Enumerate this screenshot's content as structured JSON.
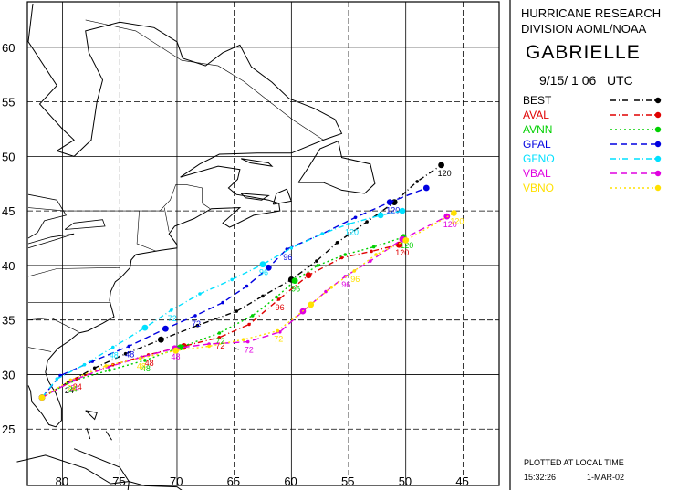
{
  "header": {
    "org_line1": "HURRICANE RESEARCH",
    "org_line2": "DIVISION AOML/NOAA",
    "storm_name": "GABRIELLE",
    "datetime": "9/15/ 1 06   UTC"
  },
  "footer": {
    "plot_note": "PLOTTED AT LOCAL TIME",
    "time": "15:32:26",
    "date": "1-MAR-02"
  },
  "axes": {
    "lon_ticks": [
      "80",
      "75",
      "70",
      "65",
      "60",
      "55",
      "50",
      "45"
    ],
    "lat_ticks": [
      "60",
      "55",
      "50",
      "45",
      "40",
      "35",
      "30",
      "25"
    ],
    "lon_range": [
      -83,
      -42
    ],
    "lat_range": [
      20,
      64
    ]
  },
  "colors": {
    "grid": "#000000",
    "coast": "#000000",
    "background": "#ffffff"
  },
  "legend": [
    {
      "name": "BEST",
      "color": "#000000",
      "style": "dashdot"
    },
    {
      "name": "AVAL",
      "color": "#e00000",
      "style": "dashdot"
    },
    {
      "name": "AVNN",
      "color": "#00d000",
      "style": "dotted"
    },
    {
      "name": "GFAL",
      "color": "#0000e0",
      "style": "dashed"
    },
    {
      "name": "GFNO",
      "color": "#00e0ff",
      "style": "dashdot"
    },
    {
      "name": "VBAL",
      "color": "#e000e0",
      "style": "dashed"
    },
    {
      "name": "VBNO",
      "color": "#ffe000",
      "style": "dotted"
    }
  ],
  "tracks": [
    {
      "name": "BEST",
      "color": "#000000",
      "points": [
        [
          -81.8,
          27.9
        ],
        [
          -79.5,
          29.3
        ],
        [
          -77.2,
          30.6
        ],
        [
          -74.5,
          31.9
        ],
        [
          -71.4,
          33.2
        ],
        [
          -68.2,
          34.5
        ],
        [
          -64.8,
          35.8
        ],
        [
          -62.5,
          37.2
        ],
        [
          -60.0,
          38.7
        ],
        [
          -57.8,
          40.4
        ],
        [
          -56.0,
          42.1
        ],
        [
          -53.4,
          44.0
        ],
        [
          -51.0,
          45.8
        ],
        [
          -49.0,
          47.7
        ],
        [
          -46.9,
          49.2
        ]
      ],
      "labels": [
        {
          "text": "24",
          "at": [
            -79.5,
            29.3
          ]
        },
        {
          "text": "120",
          "at": [
            -46.9,
            49.2
          ]
        }
      ]
    },
    {
      "name": "AVAL",
      "color": "#e00000",
      "points": [
        [
          -81.8,
          27.9
        ],
        [
          -78.8,
          29.6
        ],
        [
          -75.6,
          30.9
        ],
        [
          -72.5,
          31.8
        ],
        [
          -69.4,
          32.6
        ],
        [
          -66.3,
          33.4
        ],
        [
          -63.7,
          34.6
        ],
        [
          -61.1,
          36.9
        ],
        [
          -58.5,
          39.1
        ],
        [
          -55.6,
          40.7
        ],
        [
          -53.0,
          41.3
        ],
        [
          -50.6,
          41.9
        ]
      ],
      "labels": [
        {
          "text": "24",
          "at": [
            -78.8,
            29.6
          ]
        },
        {
          "text": "48",
          "at": [
            -72.5,
            31.8
          ]
        },
        {
          "text": "72",
          "at": [
            -66.3,
            33.4
          ]
        },
        {
          "text": "96",
          "at": [
            -61.1,
            36.9
          ]
        },
        {
          "text": "120",
          "at": [
            -50.6,
            41.9
          ]
        }
      ]
    },
    {
      "name": "AVNN",
      "color": "#00d000",
      "points": [
        [
          -81.8,
          27.9
        ],
        [
          -79.2,
          29.4
        ],
        [
          -75.9,
          30.4
        ],
        [
          -72.8,
          31.3
        ],
        [
          -69.7,
          32.5
        ],
        [
          -66.3,
          33.8
        ],
        [
          -63.4,
          35.4
        ],
        [
          -61.3,
          37.1
        ],
        [
          -59.7,
          38.6
        ],
        [
          -57.7,
          40.0
        ],
        [
          -55.3,
          41.0
        ],
        [
          -52.8,
          41.7
        ],
        [
          -50.2,
          42.6
        ]
      ],
      "labels": [
        {
          "text": "24",
          "at": [
            -79.2,
            29.4
          ]
        },
        {
          "text": "48",
          "at": [
            -72.8,
            31.3
          ]
        },
        {
          "text": "72",
          "at": [
            -66.3,
            33.8
          ]
        },
        {
          "text": "96",
          "at": [
            -59.7,
            38.6
          ]
        },
        {
          "text": "120",
          "at": [
            -50.2,
            42.6
          ]
        }
      ]
    },
    {
      "name": "GFAL",
      "color": "#0000e0",
      "points": [
        [
          -81.8,
          27.9
        ],
        [
          -80.2,
          29.9
        ],
        [
          -77.4,
          31.2
        ],
        [
          -74.2,
          32.6
        ],
        [
          -71.0,
          34.2
        ],
        [
          -68.4,
          35.4
        ],
        [
          -66.0,
          36.6
        ],
        [
          -63.9,
          38.1
        ],
        [
          -62.0,
          39.8
        ],
        [
          -60.4,
          41.5
        ],
        [
          -57.3,
          42.9
        ],
        [
          -54.4,
          44.4
        ],
        [
          -51.4,
          45.8
        ],
        [
          -48.2,
          47.1
        ]
      ],
      "labels": [
        {
          "text": "48",
          "at": [
            -74.2,
            32.6
          ]
        },
        {
          "text": "72",
          "at": [
            -68.4,
            35.4
          ]
        },
        {
          "text": "96",
          "at": [
            -60.4,
            41.5
          ]
        },
        {
          "text": "120",
          "at": [
            -51.4,
            45.8
          ]
        }
      ]
    },
    {
      "name": "GFNO",
      "color": "#00e0ff",
      "points": [
        [
          -81.8,
          27.9
        ],
        [
          -80.5,
          29.6
        ],
        [
          -78.1,
          30.9
        ],
        [
          -75.6,
          32.5
        ],
        [
          -72.8,
          34.3
        ],
        [
          -70.5,
          35.9
        ],
        [
          -68.0,
          37.4
        ],
        [
          -65.2,
          38.7
        ],
        [
          -62.5,
          40.1
        ],
        [
          -60.0,
          41.6
        ],
        [
          -57.3,
          42.9
        ],
        [
          -55.0,
          43.8
        ],
        [
          -52.2,
          44.6
        ],
        [
          -50.3,
          45.0
        ]
      ],
      "labels": [
        {
          "text": "48",
          "at": [
            -75.6,
            32.5
          ]
        },
        {
          "text": "72",
          "at": [
            -70.5,
            35.9
          ]
        },
        {
          "text": "96",
          "at": [
            -62.5,
            40.1
          ]
        },
        {
          "text": "120",
          "at": [
            -55.0,
            43.8
          ]
        }
      ]
    },
    {
      "name": "VBAL",
      "color": "#e000e0",
      "points": [
        [
          -81.8,
          27.9
        ],
        [
          -79.0,
          29.5
        ],
        [
          -76.0,
          30.7
        ],
        [
          -73.1,
          31.6
        ],
        [
          -70.2,
          32.4
        ],
        [
          -67.2,
          32.8
        ],
        [
          -63.8,
          33.0
        ],
        [
          -61.0,
          33.9
        ],
        [
          -59.0,
          35.8
        ],
        [
          -57.0,
          37.6
        ],
        [
          -55.3,
          39.0
        ],
        [
          -53.1,
          40.4
        ],
        [
          -50.3,
          42.4
        ],
        [
          -46.4,
          44.5
        ]
      ],
      "labels": [
        {
          "text": "24",
          "at": [
            -79.0,
            29.5
          ]
        },
        {
          "text": "48",
          "at": [
            -70.2,
            32.4
          ]
        },
        {
          "text": "72",
          "at": [
            -63.8,
            33.0
          ]
        },
        {
          "text": "96",
          "at": [
            -55.3,
            39.0
          ]
        },
        {
          "text": "120",
          "at": [
            -46.4,
            44.5
          ]
        }
      ]
    },
    {
      "name": "VBNO",
      "color": "#ffe000",
      "points": [
        [
          -81.8,
          27.9
        ],
        [
          -79.3,
          29.5
        ],
        [
          -76.2,
          30.8
        ],
        [
          -73.2,
          31.5
        ],
        [
          -70.1,
          32.2
        ],
        [
          -67.2,
          32.6
        ],
        [
          -64.2,
          33.2
        ],
        [
          -61.2,
          34.0
        ],
        [
          -58.3,
          36.4
        ],
        [
          -56.5,
          38.0
        ],
        [
          -54.5,
          39.5
        ],
        [
          -52.6,
          41.0
        ],
        [
          -50.0,
          42.3
        ],
        [
          -45.8,
          44.8
        ]
      ],
      "labels": [
        {
          "text": "24",
          "at": [
            -79.3,
            29.5
          ]
        },
        {
          "text": "48",
          "at": [
            -73.2,
            31.5
          ]
        },
        {
          "text": "72",
          "at": [
            -61.2,
            34.0
          ]
        },
        {
          "text": "96",
          "at": [
            -54.5,
            39.5
          ]
        },
        {
          "text": "120",
          "at": [
            -45.8,
            44.8
          ]
        }
      ]
    }
  ]
}
